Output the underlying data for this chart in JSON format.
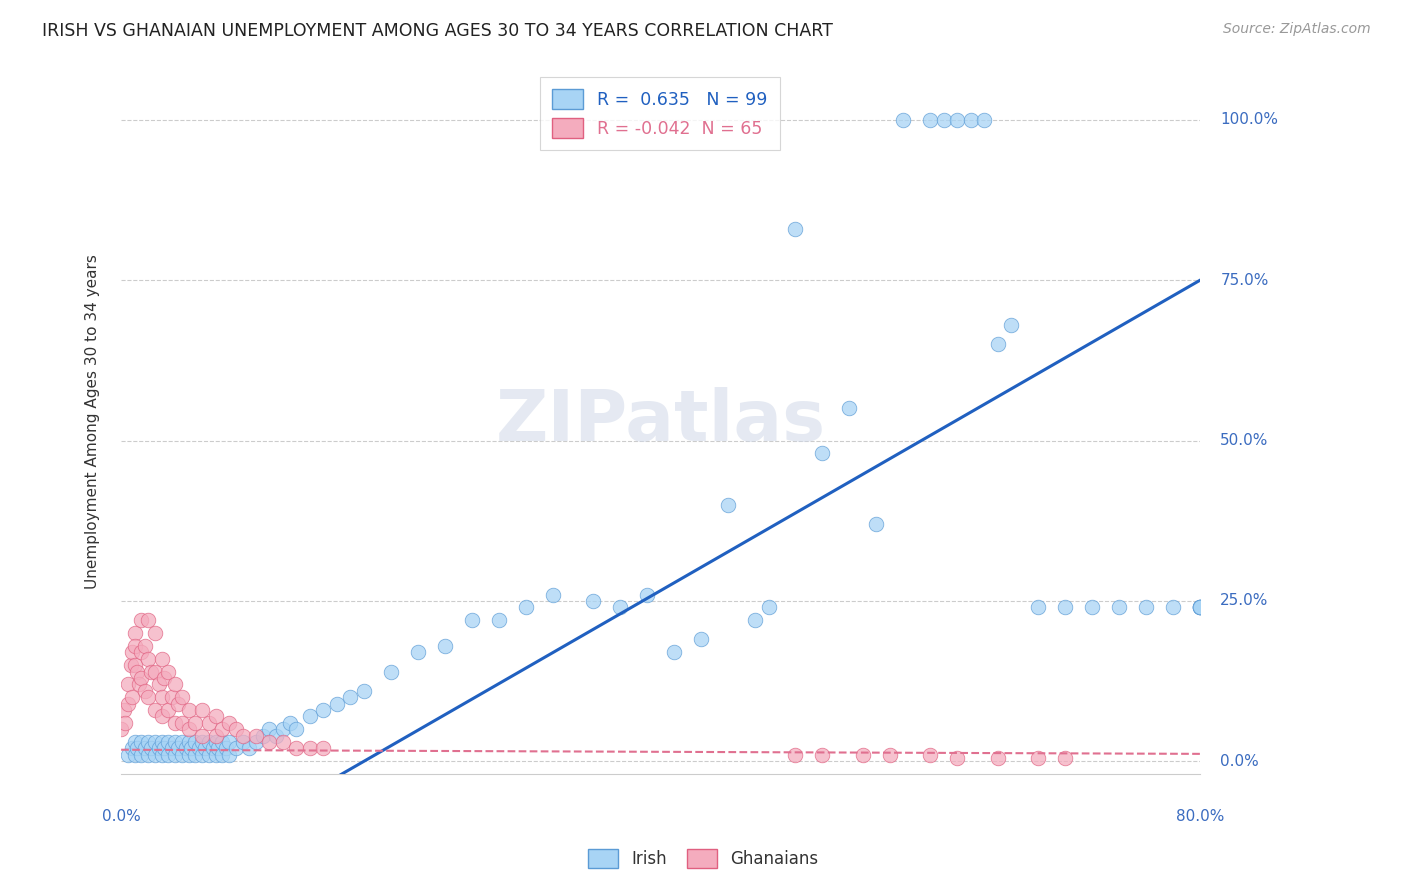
{
  "title": "IRISH VS GHANAIAN UNEMPLOYMENT AMONG AGES 30 TO 34 YEARS CORRELATION CHART",
  "source": "Source: ZipAtlas.com",
  "ylabel": "Unemployment Among Ages 30 to 34 years",
  "ytick_labels": [
    "0.0%",
    "25.0%",
    "50.0%",
    "75.0%",
    "100.0%"
  ],
  "ytick_values": [
    0.0,
    0.25,
    0.5,
    0.75,
    1.0
  ],
  "xlim": [
    0.0,
    0.8
  ],
  "ylim": [
    -0.02,
    1.08
  ],
  "legend_irish": "Irish",
  "legend_ghanaians": "Ghanaians",
  "R_irish": 0.635,
  "N_irish": 99,
  "R_ghanaian": -0.042,
  "N_ghanaian": 65,
  "irish_color": "#A8D4F5",
  "irish_edge_color": "#5B9BD5",
  "ghanaian_color": "#F4ACBE",
  "ghanaian_edge_color": "#E06080",
  "irish_line_color": "#2060C0",
  "ghanaian_line_color": "#E07090",
  "watermark_color": "#D0D8E8",
  "irish_x": [
    0.005,
    0.008,
    0.01,
    0.01,
    0.012,
    0.015,
    0.015,
    0.018,
    0.02,
    0.02,
    0.022,
    0.025,
    0.025,
    0.028,
    0.03,
    0.03,
    0.032,
    0.035,
    0.035,
    0.038,
    0.04,
    0.04,
    0.042,
    0.045,
    0.045,
    0.048,
    0.05,
    0.05,
    0.052,
    0.055,
    0.055,
    0.058,
    0.06,
    0.06,
    0.062,
    0.065,
    0.065,
    0.068,
    0.07,
    0.07,
    0.072,
    0.075,
    0.075,
    0.078,
    0.08,
    0.08,
    0.085,
    0.09,
    0.095,
    0.1,
    0.105,
    0.11,
    0.115,
    0.12,
    0.125,
    0.13,
    0.14,
    0.15,
    0.16,
    0.17,
    0.18,
    0.2,
    0.22,
    0.24,
    0.26,
    0.28,
    0.3,
    0.32,
    0.35,
    0.37,
    0.39,
    0.41,
    0.43,
    0.45,
    0.47,
    0.48,
    0.5,
    0.52,
    0.54,
    0.56,
    0.58,
    0.6,
    0.61,
    0.62,
    0.63,
    0.64,
    0.65,
    0.66,
    0.68,
    0.7,
    0.72,
    0.74,
    0.76,
    0.78,
    0.8,
    0.8,
    0.8,
    0.8,
    0.8
  ],
  "irish_y": [
    0.01,
    0.02,
    0.01,
    0.03,
    0.02,
    0.01,
    0.03,
    0.02,
    0.01,
    0.03,
    0.02,
    0.01,
    0.03,
    0.02,
    0.01,
    0.03,
    0.02,
    0.01,
    0.03,
    0.02,
    0.01,
    0.03,
    0.02,
    0.01,
    0.03,
    0.02,
    0.01,
    0.03,
    0.02,
    0.01,
    0.03,
    0.02,
    0.01,
    0.03,
    0.02,
    0.01,
    0.03,
    0.02,
    0.01,
    0.03,
    0.02,
    0.01,
    0.03,
    0.02,
    0.01,
    0.03,
    0.02,
    0.03,
    0.02,
    0.03,
    0.04,
    0.05,
    0.04,
    0.05,
    0.06,
    0.05,
    0.07,
    0.08,
    0.09,
    0.1,
    0.11,
    0.14,
    0.17,
    0.18,
    0.22,
    0.22,
    0.24,
    0.26,
    0.25,
    0.24,
    0.26,
    0.17,
    0.19,
    0.4,
    0.22,
    0.24,
    0.83,
    0.48,
    0.55,
    0.37,
    1.0,
    1.0,
    1.0,
    1.0,
    1.0,
    1.0,
    0.65,
    0.68,
    0.24,
    0.24,
    0.24,
    0.24,
    0.24,
    0.24,
    0.24,
    0.24,
    0.24,
    0.24,
    0.24
  ],
  "ghanaian_x": [
    0.0,
    0.002,
    0.003,
    0.005,
    0.005,
    0.007,
    0.008,
    0.008,
    0.01,
    0.01,
    0.01,
    0.012,
    0.013,
    0.015,
    0.015,
    0.015,
    0.018,
    0.018,
    0.02,
    0.02,
    0.02,
    0.022,
    0.025,
    0.025,
    0.025,
    0.028,
    0.03,
    0.03,
    0.03,
    0.032,
    0.035,
    0.035,
    0.038,
    0.04,
    0.04,
    0.042,
    0.045,
    0.045,
    0.05,
    0.05,
    0.055,
    0.06,
    0.06,
    0.065,
    0.07,
    0.07,
    0.075,
    0.08,
    0.085,
    0.09,
    0.1,
    0.11,
    0.12,
    0.13,
    0.14,
    0.15,
    0.5,
    0.52,
    0.55,
    0.57,
    0.6,
    0.62,
    0.65,
    0.68,
    0.7
  ],
  "ghanaian_y": [
    0.05,
    0.08,
    0.06,
    0.12,
    0.09,
    0.15,
    0.1,
    0.17,
    0.2,
    0.15,
    0.18,
    0.14,
    0.12,
    0.22,
    0.17,
    0.13,
    0.18,
    0.11,
    0.22,
    0.16,
    0.1,
    0.14,
    0.2,
    0.14,
    0.08,
    0.12,
    0.16,
    0.1,
    0.07,
    0.13,
    0.14,
    0.08,
    0.1,
    0.12,
    0.06,
    0.09,
    0.1,
    0.06,
    0.08,
    0.05,
    0.06,
    0.08,
    0.04,
    0.06,
    0.07,
    0.04,
    0.05,
    0.06,
    0.05,
    0.04,
    0.04,
    0.03,
    0.03,
    0.02,
    0.02,
    0.02,
    0.01,
    0.01,
    0.01,
    0.01,
    0.01,
    0.005,
    0.005,
    0.005,
    0.005
  ],
  "irish_trend": [
    0.18,
    0.0,
    0.8,
    0.75
  ],
  "ghanaian_trend_y_intercept": 0.018,
  "ghanaian_trend_slope": -0.008
}
